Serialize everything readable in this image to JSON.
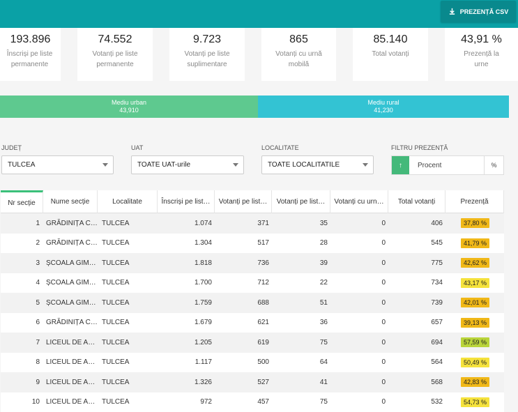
{
  "header": {
    "csv_button_label": "PREZENȚĂ CSV",
    "csv_icon": "download-icon"
  },
  "stats": [
    {
      "value": "193.896",
      "label": "Înscriși pe liste permanente"
    },
    {
      "value": "74.552",
      "label": "Votanți pe liste permanente"
    },
    {
      "value": "9.723",
      "label": "Votanți pe liste suplimentare"
    },
    {
      "value": "865",
      "label": "Votanți cu urnă mobilă"
    },
    {
      "value": "85.140",
      "label": "Total votanți"
    },
    {
      "value": "43,91 %",
      "label": "Prezență la urne"
    }
  ],
  "environment": {
    "urban": {
      "label": "Mediu urban",
      "value": "43,910",
      "color": "#5ec98f"
    },
    "rural": {
      "label": "Mediu rural",
      "value": "41,230",
      "color": "#33c3d3"
    }
  },
  "filters": {
    "judet": {
      "label": "JUDEȚ",
      "value": "TULCEA"
    },
    "uat": {
      "label": "UAT",
      "value": "TOATE UAT-urile"
    },
    "localitate": {
      "label": "LOCALITATE",
      "value": "TOATE LOCALITATILE"
    },
    "prezenta": {
      "label": "FILTRU PREZENȚĂ",
      "sort_icon": "↑",
      "placeholder": "Procent",
      "suffix": "%"
    }
  },
  "table": {
    "headers": [
      "Nr secție",
      "Nume secție",
      "Localitate",
      "Înscriși pe list…",
      "Votanți pe list…",
      "Votanți pe list…",
      "Votanți cu urn…",
      "Total votanți",
      "Prezență"
    ],
    "rows": [
      [
        "1",
        "GRĂDINIȚA C…",
        "TULCEA",
        "1.074",
        "371",
        "35",
        "0",
        "406",
        "37,80 %"
      ],
      [
        "2",
        "GRĂDINIȚA C…",
        "TULCEA",
        "1.304",
        "517",
        "28",
        "0",
        "545",
        "41,79 %"
      ],
      [
        "3",
        "ȘCOALA GIM…",
        "TULCEA",
        "1.818",
        "736",
        "39",
        "0",
        "775",
        "42,62 %"
      ],
      [
        "4",
        "ȘCOALA GIM…",
        "TULCEA",
        "1.700",
        "712",
        "22",
        "0",
        "734",
        "43,17 %"
      ],
      [
        "5",
        "ȘCOALA GIM…",
        "TULCEA",
        "1.759",
        "688",
        "51",
        "0",
        "739",
        "42,01 %"
      ],
      [
        "6",
        "GRĂDINIȚA C…",
        "TULCEA",
        "1.679",
        "621",
        "36",
        "0",
        "657",
        "39,13 %"
      ],
      [
        "7",
        "LICEUL DE A…",
        "TULCEA",
        "1.205",
        "619",
        "75",
        "0",
        "694",
        "57,59 %"
      ],
      [
        "8",
        "LICEUL DE A…",
        "TULCEA",
        "1.117",
        "500",
        "64",
        "0",
        "564",
        "50,49 %"
      ],
      [
        "9",
        "LICEUL DE A…",
        "TULCEA",
        "1.326",
        "527",
        "41",
        "0",
        "568",
        "42,83 %"
      ],
      [
        "10",
        "LICEUL DE A…",
        "TULCEA",
        "972",
        "457",
        "75",
        "0",
        "532",
        "54,73 %"
      ]
    ],
    "badge_colors": [
      "#f0b818",
      "#f0b818",
      "#f0b818",
      "#f5e23c",
      "#f0b818",
      "#f0b818",
      "#b9d43a",
      "#f5e23c",
      "#f0b818",
      "#f5e23c"
    ]
  }
}
